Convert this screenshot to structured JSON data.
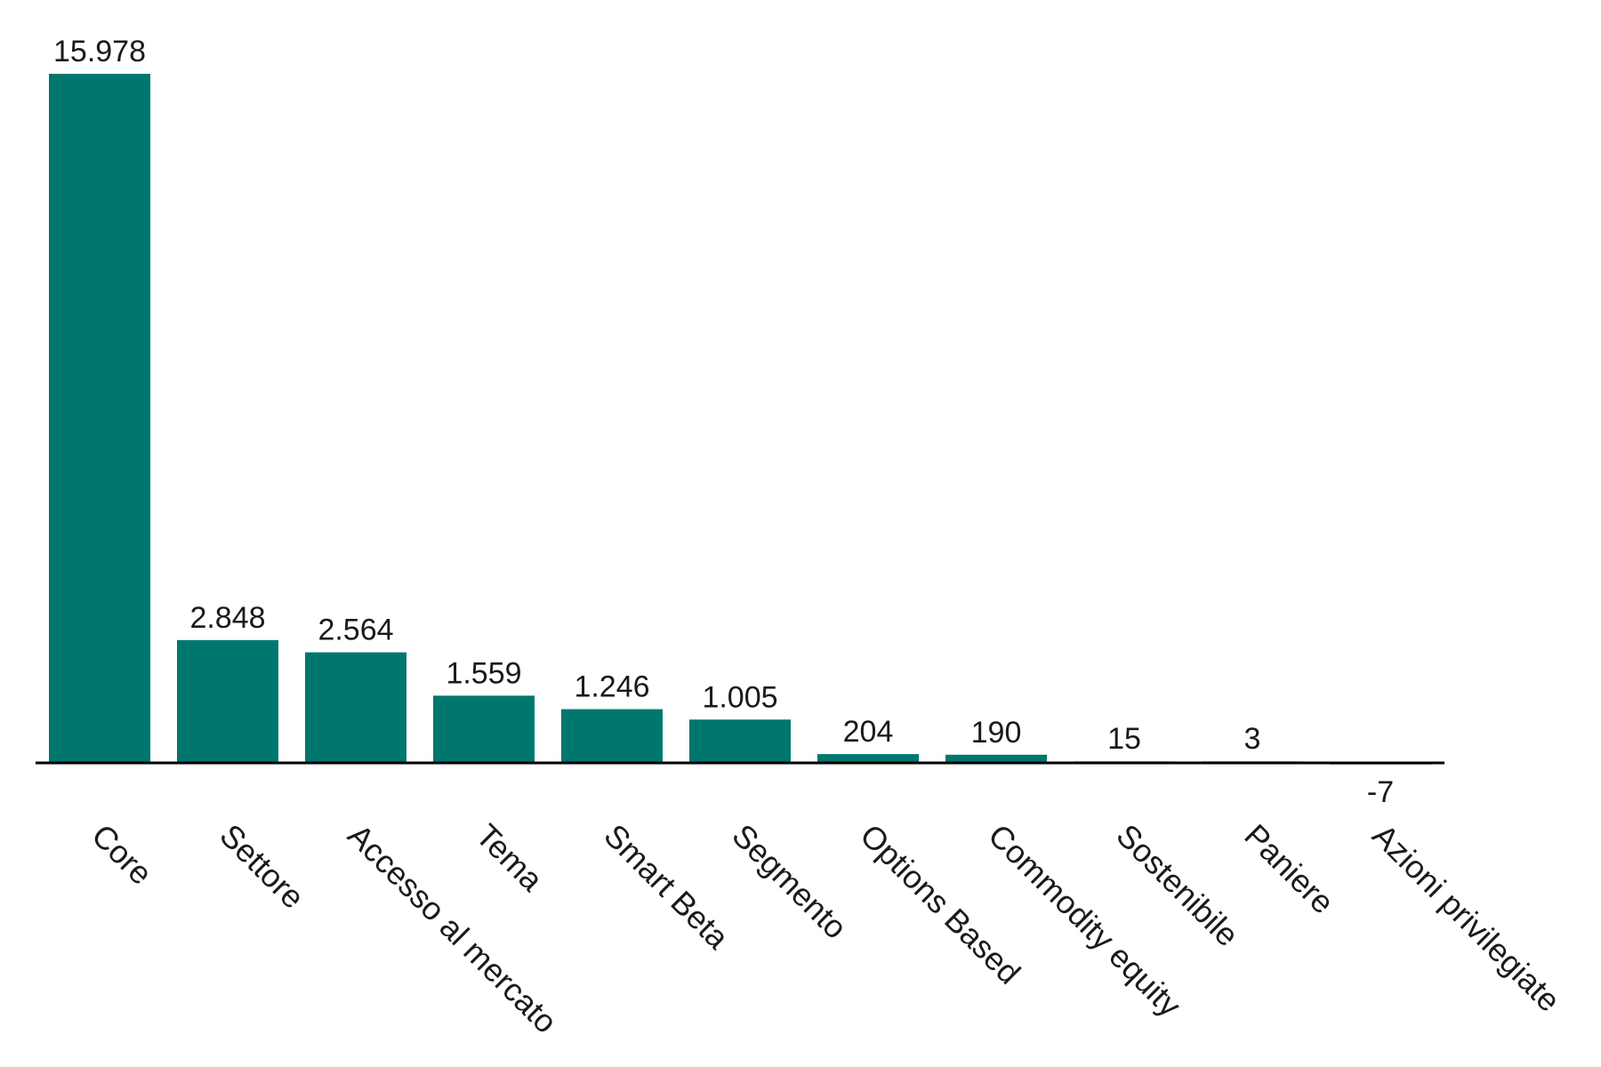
{
  "chart_data": {
    "type": "bar",
    "title": "",
    "xlabel": "",
    "ylabel": "",
    "categories": [
      "Core",
      "Settore",
      "Accesso al mercato",
      "Tema",
      "Smart Beta",
      "Segmento",
      "Options Based",
      "Commodity equity",
      "Sostenibile",
      "Paniere",
      "Azioni privilegiate"
    ],
    "values": [
      15978,
      2848,
      2564,
      1559,
      1246,
      1005,
      204,
      190,
      15,
      3,
      -7
    ],
    "value_labels": [
      "15.978",
      "2.848",
      "2.564",
      "1.559",
      "1.246",
      "1.005",
      "204",
      "190",
      "15",
      "3",
      "-7"
    ],
    "ylim": [
      -7,
      15978
    ],
    "grid": false,
    "legend": "none",
    "bar_color": "#00776e",
    "baseline_color": "#000000"
  }
}
